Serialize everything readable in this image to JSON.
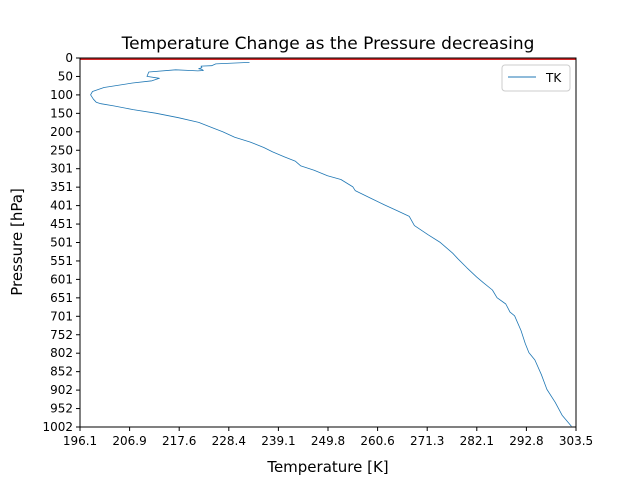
{
  "chart_data": {
    "type": "line",
    "title": "Temperature Change as the Pressure decreasing",
    "xlabel": "Temperature [K]",
    "ylabel": "Pressure [hPa]",
    "xlim": [
      196.1,
      303.5
    ],
    "ylim": [
      1002,
      0
    ],
    "y_inverted": true,
    "x_ticks": [
      "196.1",
      "206.9",
      "217.6",
      "228.4",
      "239.1",
      "249.8",
      "260.6",
      "271.3",
      "282.1",
      "292.8",
      "303.5"
    ],
    "y_ticks": [
      "0",
      "50",
      "100",
      "150",
      "200",
      "250",
      "301",
      "351",
      "401",
      "451",
      "501",
      "551",
      "601",
      "651",
      "701",
      "752",
      "802",
      "852",
      "902",
      "952",
      "1002"
    ],
    "grid": false,
    "legend": {
      "location": "top-right",
      "entries": [
        "TK"
      ]
    },
    "series": [
      {
        "name": "TK",
        "color": "#1f77b4",
        "x": [
          232.8,
          225.5,
          224.6,
          222.3,
          222.5,
          221.8,
          222.5,
          222.8,
          221.6,
          220.0,
          216.8,
          211.0,
          210.6,
          213.3,
          211.7,
          207.5,
          201.3,
          198.8,
          198.4,
          199.0,
          199.6,
          200.6,
          203.4,
          207.6,
          212.5,
          217.4,
          221.8,
          224.9,
          227.0,
          229.6,
          232.9,
          235.9,
          237.8,
          240.3,
          242.7,
          243.9,
          246.8,
          249.7,
          252.6,
          255.2,
          255.7,
          258.9,
          261.9,
          264.8,
          267.4,
          268.5,
          271.5,
          274.0,
          276.8,
          277.9,
          279.9,
          282.0,
          283.4,
          285.4,
          286.4,
          288.3,
          289.2,
          290.2,
          291.6,
          292.5,
          293.3,
          294.6,
          296.0,
          297.2,
          299.0,
          300.5,
          302.5
        ],
        "y": [
          12,
          16,
          21,
          22,
          26,
          29,
          31,
          34,
          35,
          34,
          32,
          38,
          50,
          55,
          62,
          68,
          80,
          91,
          100,
          112,
          120,
          124,
          130,
          140,
          150,
          162,
          175,
          190,
          200,
          215,
          228,
          243,
          255,
          268,
          280,
          293,
          305,
          320,
          330,
          350,
          360,
          380,
          398,
          415,
          430,
          455,
          480,
          500,
          530,
          545,
          570,
          595,
          610,
          630,
          651,
          668,
          690,
          700,
          740,
          775,
          800,
          820,
          860,
          900,
          935,
          970,
          1000
        ]
      },
      {
        "name": "",
        "color": "#d62728",
        "x": [
          196.1,
          303.5
        ],
        "y": [
          2,
          2
        ]
      }
    ]
  }
}
